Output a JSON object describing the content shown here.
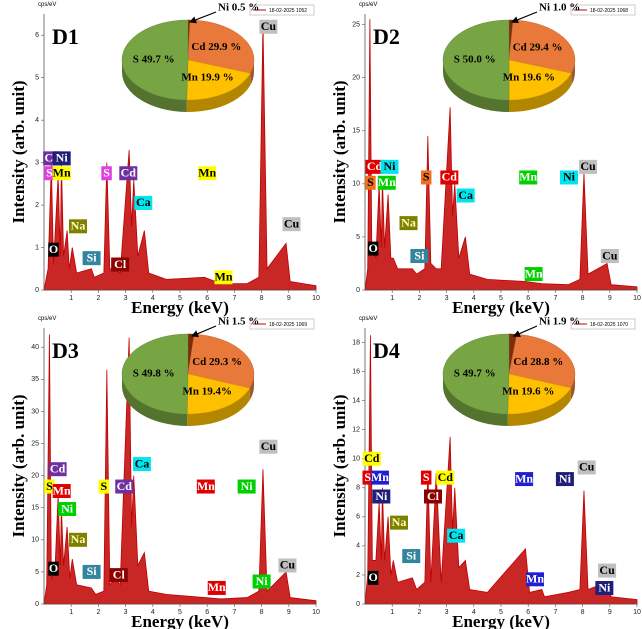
{
  "chart_data": [
    {
      "type": "line",
      "title": "D1",
      "unit_label": "cps/eV",
      "y_label": "Intensity (arb. unit)",
      "x_label": "Energy (keV)",
      "x": [
        0,
        0.15,
        0.27,
        0.35,
        0.52,
        0.6,
        0.64,
        0.72,
        0.85,
        0.93,
        1.04,
        1.2,
        1.74,
        1.85,
        2.2,
        2.31,
        2.42,
        2.62,
        2.8,
        3.13,
        3.22,
        3.3,
        3.45,
        3.69,
        3.85,
        4.5,
        5.9,
        6.5,
        7.47,
        7.9,
        8.05,
        8.2,
        8.9,
        9.05,
        10
      ],
      "series": [
        {
          "name": "18-02-2025 1052",
          "color": "#c00000",
          "values": [
            0,
            0.5,
            3.0,
            0.6,
            2.7,
            0.8,
            3.0,
            0.8,
            1.4,
            0.5,
            1.0,
            0.4,
            0.5,
            0.3,
            0.4,
            3.0,
            0.5,
            0.5,
            0.4,
            3.3,
            1.5,
            2.6,
            0.8,
            1.4,
            0.4,
            0.25,
            0.3,
            0.15,
            0.15,
            0.3,
            6.3,
            0.5,
            1.1,
            0.2,
            0.1
          ]
        }
      ],
      "xlim": [
        0,
        10
      ],
      "xticks": [
        1,
        2,
        3,
        4,
        5,
        6,
        7,
        8,
        9,
        10
      ],
      "ylim": [
        0,
        6.5
      ],
      "yticks": [
        0,
        1,
        2,
        3,
        4,
        5,
        6
      ],
      "annotations": [
        {
          "text": "Cd",
          "x": 0.3,
          "y": 3.1,
          "color": "#7030a0"
        },
        {
          "text": "Ni",
          "x": 0.65,
          "y": 3.1,
          "color": "#1f1f7a"
        },
        {
          "text": "S",
          "x": 0.2,
          "y": 2.75,
          "color": "#e040e0"
        },
        {
          "text": "Mn",
          "x": 0.65,
          "y": 2.75,
          "color": "#ffff00"
        },
        {
          "text": "S",
          "x": 2.3,
          "y": 2.75,
          "color": "#e040e0"
        },
        {
          "text": "Cd",
          "x": 3.1,
          "y": 2.75,
          "color": "#7030a0"
        },
        {
          "text": "Ca",
          "x": 3.65,
          "y": 2.05,
          "color": "#00e5ee"
        },
        {
          "text": "Mn",
          "x": 6.0,
          "y": 2.75,
          "color": "#ffff00"
        },
        {
          "text": "Na",
          "x": 1.25,
          "y": 1.5,
          "color": "#7f7f00"
        },
        {
          "text": "O",
          "x": 0.35,
          "y": 0.95,
          "color": "#000000"
        },
        {
          "text": "Si",
          "x": 1.75,
          "y": 0.75,
          "color": "#31859c"
        },
        {
          "text": "Cl",
          "x": 2.8,
          "y": 0.6,
          "color": "#8b0000"
        },
        {
          "text": "Mn",
          "x": 6.6,
          "y": 0.3,
          "color": "#ffff00"
        },
        {
          "text": "Cu",
          "x": 8.25,
          "y": 6.2,
          "color": "#bfbfbf"
        },
        {
          "text": "Cu",
          "x": 9.1,
          "y": 1.55,
          "color": "#bfbfbf"
        }
      ],
      "inset": {
        "type": "pie",
        "values": [
          0.5,
          29.9,
          19.9,
          49.7
        ],
        "value_labels": [
          "Ni 0.5 %",
          "Cd 29.9 %",
          "Mn 19.9 %",
          "S 49.7 %"
        ],
        "colors": [
          "#7f2a0a",
          "#e8793a",
          "#ffc000",
          "#77a543"
        ]
      }
    },
    {
      "type": "line",
      "title": "D2",
      "unit_label": "cps/eV",
      "y_label": "Intensity (arb. unit)",
      "x_label": "Energy (keV)",
      "x": [
        0,
        0.1,
        0.18,
        0.25,
        0.4,
        0.52,
        0.6,
        0.64,
        0.72,
        0.85,
        0.95,
        1.04,
        1.2,
        1.74,
        1.9,
        2.2,
        2.31,
        2.42,
        2.62,
        2.8,
        3.13,
        3.22,
        3.3,
        3.45,
        3.69,
        3.85,
        4.5,
        5.9,
        6.5,
        7.47,
        7.9,
        8.05,
        8.2,
        8.9,
        9.05,
        10
      ],
      "series": [
        {
          "name": "18-02-2025 1068",
          "color": "#c00000",
          "values": [
            0,
            2,
            25.5,
            4,
            3,
            10,
            4,
            10.5,
            4,
            9,
            3,
            3,
            2,
            2,
            1.5,
            2,
            14.5,
            2.5,
            2,
            2,
            17.2,
            7,
            10,
            3,
            5,
            1.5,
            1,
            0.8,
            0.6,
            0.5,
            1,
            11,
            1.5,
            2.5,
            0.5,
            0.3
          ]
        }
      ],
      "xlim": [
        0,
        10
      ],
      "xticks": [
        1,
        2,
        3,
        4,
        5,
        6,
        7,
        8,
        9,
        10
      ],
      "ylim": [
        0,
        26
      ],
      "yticks": [
        0,
        5,
        10,
        15,
        20,
        25
      ],
      "annotations": [
        {
          "text": "Cd",
          "x": 0.35,
          "y": 11.6,
          "color": "#e00000"
        },
        {
          "text": "Ni",
          "x": 0.9,
          "y": 11.6,
          "color": "#00e5ee"
        },
        {
          "text": "S",
          "x": 0.2,
          "y": 10.1,
          "color": "#f07020"
        },
        {
          "text": "Mn",
          "x": 0.8,
          "y": 10.1,
          "color": "#00d000"
        },
        {
          "text": "S",
          "x": 2.25,
          "y": 10.6,
          "color": "#f07020"
        },
        {
          "text": "Cd",
          "x": 3.1,
          "y": 10.6,
          "color": "#e00000"
        },
        {
          "text": "Ca",
          "x": 3.7,
          "y": 8.9,
          "color": "#00e5ee"
        },
        {
          "text": "Mn",
          "x": 6.0,
          "y": 10.6,
          "color": "#00d000"
        },
        {
          "text": "Ni",
          "x": 7.5,
          "y": 10.6,
          "color": "#00e5ee"
        },
        {
          "text": "Cu",
          "x": 8.2,
          "y": 11.6,
          "color": "#bfbfbf"
        },
        {
          "text": "Na",
          "x": 1.6,
          "y": 6.3,
          "color": "#7f7f00"
        },
        {
          "text": "O",
          "x": 0.3,
          "y": 3.9,
          "color": "#000000"
        },
        {
          "text": "Si",
          "x": 2.0,
          "y": 3.2,
          "color": "#31859c"
        },
        {
          "text": "Mn",
          "x": 6.2,
          "y": 1.5,
          "color": "#00d000"
        },
        {
          "text": "Cu",
          "x": 9.0,
          "y": 3.2,
          "color": "#bfbfbf"
        }
      ],
      "inset": {
        "type": "pie",
        "values": [
          1.0,
          29.4,
          19.6,
          50.0
        ],
        "value_labels": [
          "Ni 1.0 %",
          "Cd 29.4 %",
          "Mn 19.6 %",
          "S 50.0 %"
        ],
        "colors": [
          "#7f2a0a",
          "#e8793a",
          "#ffc000",
          "#77a543"
        ]
      }
    },
    {
      "type": "line",
      "title": "D3",
      "unit_label": "cps/eV",
      "y_label": "Intensity (arb. unit)",
      "x_label": "Energy (keV)",
      "x": [
        0,
        0.1,
        0.2,
        0.27,
        0.4,
        0.52,
        0.6,
        0.64,
        0.72,
        0.85,
        0.95,
        1.04,
        1.2,
        1.74,
        1.9,
        2.2,
        2.31,
        2.42,
        2.62,
        2.8,
        3.13,
        3.22,
        3.3,
        3.45,
        3.69,
        3.85,
        4.5,
        5.9,
        6.5,
        7.47,
        7.9,
        8.05,
        8.2,
        8.9,
        9.05,
        10
      ],
      "series": [
        {
          "name": "18-02-2025 1069",
          "color": "#c00000",
          "values": [
            0,
            3,
            42,
            4,
            5,
            17,
            6,
            15,
            6,
            12,
            4,
            7,
            3,
            2.5,
            1.5,
            2,
            36.5,
            3,
            4,
            3,
            41.5,
            12,
            20,
            6,
            8,
            2,
            1.5,
            1,
            0.8,
            1,
            2,
            21,
            2,
            5,
            1,
            0.5
          ]
        }
      ],
      "xlim": [
        0,
        10
      ],
      "xticks": [
        1,
        2,
        3,
        4,
        5,
        6,
        7,
        8,
        9,
        10
      ],
      "ylim": [
        0,
        43
      ],
      "yticks": [
        0,
        5,
        10,
        15,
        20,
        25,
        30,
        35,
        40
      ],
      "annotations": [
        {
          "text": "Cd",
          "x": 0.5,
          "y": 21,
          "color": "#7030a0"
        },
        {
          "text": "S",
          "x": 0.2,
          "y": 18.3,
          "color": "#ffff00"
        },
        {
          "text": "Mn",
          "x": 0.65,
          "y": 17.6,
          "color": "#e00000"
        },
        {
          "text": "Ni",
          "x": 0.85,
          "y": 14.8,
          "color": "#00d000"
        },
        {
          "text": "Na",
          "x": 1.25,
          "y": 10,
          "color": "#7f7f00"
        },
        {
          "text": "O",
          "x": 0.35,
          "y": 5.5,
          "color": "#000000"
        },
        {
          "text": "Si",
          "x": 1.75,
          "y": 5,
          "color": "#31859c"
        },
        {
          "text": "Cl",
          "x": 2.75,
          "y": 4.5,
          "color": "#8b0000"
        },
        {
          "text": "S",
          "x": 2.2,
          "y": 18.3,
          "color": "#ffff00"
        },
        {
          "text": "Cd",
          "x": 2.95,
          "y": 18.3,
          "color": "#7030a0"
        },
        {
          "text": "Ca",
          "x": 3.6,
          "y": 21.8,
          "color": "#00e5ee"
        },
        {
          "text": "Mn",
          "x": 5.95,
          "y": 18.3,
          "color": "#e00000"
        },
        {
          "text": "Ni",
          "x": 7.45,
          "y": 18.3,
          "color": "#00d000"
        },
        {
          "text": "Cu",
          "x": 8.25,
          "y": 24.5,
          "color": "#bfbfbf"
        },
        {
          "text": "Mn",
          "x": 6.35,
          "y": 2.5,
          "color": "#e00000"
        },
        {
          "text": "Ni",
          "x": 8.0,
          "y": 3.5,
          "color": "#00d000"
        },
        {
          "text": "Cu",
          "x": 8.95,
          "y": 6,
          "color": "#bfbfbf"
        }
      ],
      "inset": {
        "type": "pie",
        "values": [
          1.5,
          29.3,
          19.4,
          49.8
        ],
        "value_labels": [
          "Ni 1.5 %",
          "Cd 29.3 %",
          "Mn 19.4%",
          "S 49.8 %"
        ],
        "colors": [
          "#7f2a0a",
          "#e8793a",
          "#ffc000",
          "#77a543"
        ]
      }
    },
    {
      "type": "line",
      "title": "D4",
      "unit_label": "cps/eV",
      "y_label": "Intensity (arb. unit)",
      "x_label": "Energy (keV)",
      "x": [
        0,
        0.1,
        0.2,
        0.27,
        0.4,
        0.52,
        0.6,
        0.64,
        0.72,
        0.85,
        0.95,
        1.04,
        1.2,
        1.74,
        1.9,
        2.2,
        2.31,
        2.42,
        2.62,
        2.8,
        3.13,
        3.22,
        3.3,
        3.45,
        3.69,
        3.85,
        4.5,
        5.9,
        6.05,
        6.5,
        6.6,
        7.47,
        7.9,
        8.05,
        8.2,
        8.9,
        9.05,
        10
      ],
      "series": [
        {
          "name": "18-02-2025 1070",
          "color": "#c00000",
          "values": [
            0,
            2,
            18.5,
            3,
            3,
            7,
            3,
            8,
            3,
            6,
            2,
            3,
            1.5,
            1.8,
            1,
            1.5,
            9.2,
            1.5,
            9,
            1.5,
            11.5,
            5,
            8,
            2.5,
            3,
            1,
            0.8,
            3.8,
            0.8,
            1,
            0.5,
            0.8,
            1,
            7.8,
            1,
            1.5,
            0.5,
            0.3
          ]
        }
      ],
      "xlim": [
        0,
        10
      ],
      "xticks": [
        1,
        2,
        3,
        4,
        5,
        6,
        7,
        8,
        9,
        10
      ],
      "ylim": [
        0,
        19
      ],
      "yticks": [
        0,
        2,
        4,
        6,
        8,
        10,
        12,
        14,
        16,
        18
      ],
      "annotations": [
        {
          "text": "Cd",
          "x": 0.25,
          "y": 10,
          "color": "#ffff00"
        },
        {
          "text": "S",
          "x": 0.1,
          "y": 8.7,
          "color": "#e00000"
        },
        {
          "text": "Mn",
          "x": 0.55,
          "y": 8.7,
          "color": "#2020d0"
        },
        {
          "text": "Ni",
          "x": 0.6,
          "y": 7.4,
          "color": "#1f1f7a"
        },
        {
          "text": "Na",
          "x": 1.25,
          "y": 5.6,
          "color": "#7f7f00"
        },
        {
          "text": "O",
          "x": 0.3,
          "y": 1.8,
          "color": "#000000"
        },
        {
          "text": "Si",
          "x": 1.7,
          "y": 3.3,
          "color": "#31859c"
        },
        {
          "text": "S",
          "x": 2.25,
          "y": 8.7,
          "color": "#e00000"
        },
        {
          "text": "Cl",
          "x": 2.5,
          "y": 7.4,
          "color": "#8b0000"
        },
        {
          "text": "Cd",
          "x": 2.95,
          "y": 8.7,
          "color": "#ffff00"
        },
        {
          "text": "Ca",
          "x": 3.35,
          "y": 4.7,
          "color": "#00e5ee"
        },
        {
          "text": "Mn",
          "x": 5.85,
          "y": 8.6,
          "color": "#2020d0"
        },
        {
          "text": "Ni",
          "x": 7.35,
          "y": 8.6,
          "color": "#1f1f7a"
        },
        {
          "text": "Cu",
          "x": 8.15,
          "y": 9.4,
          "color": "#bfbfbf"
        },
        {
          "text": "Mn",
          "x": 6.25,
          "y": 1.7,
          "color": "#2020d0"
        },
        {
          "text": "Cu",
          "x": 8.9,
          "y": 2.3,
          "color": "#bfbfbf"
        },
        {
          "text": "Ni",
          "x": 8.8,
          "y": 1.1,
          "color": "#1f1f7a"
        }
      ],
      "inset": {
        "type": "pie",
        "values": [
          1.9,
          28.8,
          19.6,
          49.7
        ],
        "value_labels": [
          "Ni 1.9 %",
          "Cd 28.8 %",
          "Mn 19.6 %",
          "S 49.7 %"
        ],
        "colors": [
          "#7f2a0a",
          "#e8793a",
          "#ffc000",
          "#77a543"
        ]
      }
    }
  ]
}
